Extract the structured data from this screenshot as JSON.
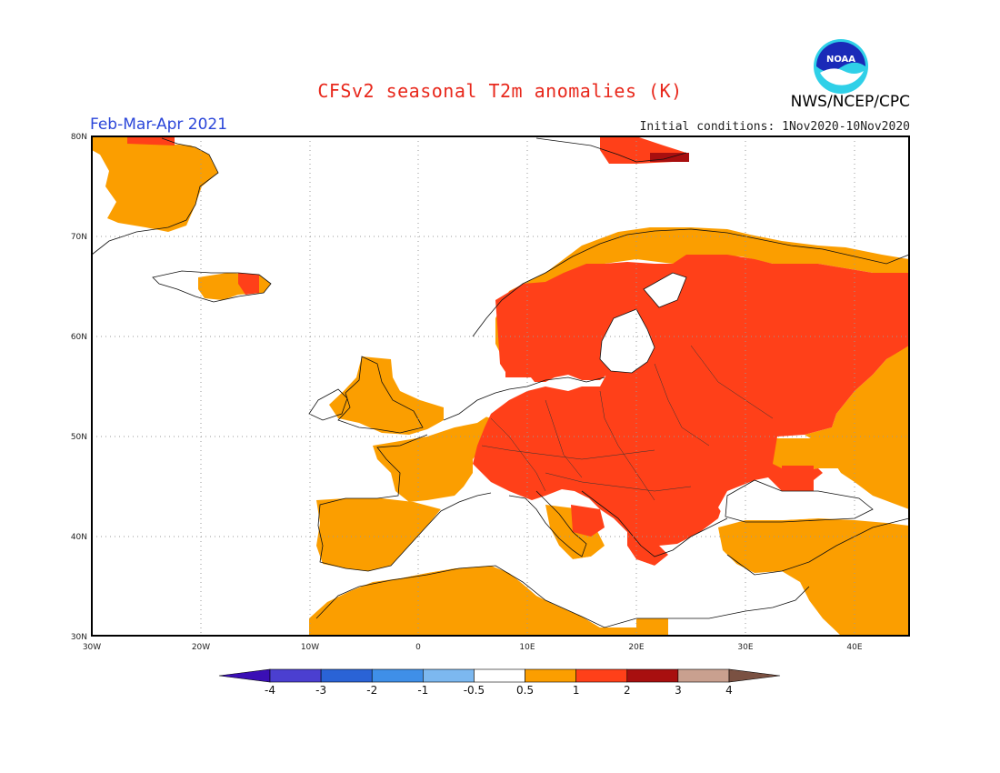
{
  "header": {
    "title": "CFSv2 seasonal T2m anomalies (K)",
    "period": "Feb-Mar-Apr 2021",
    "initial_conditions": "Initial conditions: 1Nov2020-10Nov2020",
    "agency": "NWS/NCEP/CPC",
    "logo_text": "NOAA"
  },
  "map": {
    "lon_range": [
      -30,
      45
    ],
    "lat_range": [
      30,
      80
    ],
    "lat_labels": [
      "30N",
      "40N",
      "50N",
      "60N",
      "70N",
      "80N"
    ],
    "lon_labels": [
      "30W",
      "20W",
      "10W",
      "0",
      "10E",
      "20E",
      "30E",
      "40E"
    ],
    "grid": true
  },
  "colorbar": {
    "labels": [
      "-4",
      "-3",
      "-2",
      "-1",
      "-0.5",
      "0.5",
      "1",
      "2",
      "3",
      "4"
    ],
    "colors": [
      "#3a0fb5",
      "#4b3fd0",
      "#2a63d6",
      "#3f8fe8",
      "#7cb8f0",
      "#ffffff",
      "#fb9e00",
      "#ff4019",
      "#a80f0f",
      "#c9a08f",
      "#7a5142"
    ]
  },
  "chart_data": {
    "type": "heatmap",
    "title": "CFSv2 seasonal T2m anomalies (K)",
    "subtitle": "Feb-Mar-Apr 2021",
    "xlim": [
      -30,
      45
    ],
    "ylim": [
      30,
      80
    ],
    "levels": [
      -4,
      -3,
      -2,
      -1,
      -0.5,
      0.5,
      1,
      2,
      3,
      4
    ],
    "regions": [
      {
        "name": "Greenland",
        "class": "0.5-1"
      },
      {
        "name": "Iceland",
        "class": "0.5-1"
      },
      {
        "name": "Svalbard",
        "class": "1-2"
      },
      {
        "name": "Scandinavia & Finland",
        "class": "1-2"
      },
      {
        "name": "Central & Eastern Europe",
        "class": "1-2"
      },
      {
        "name": "European Russia",
        "class": "1-2"
      },
      {
        "name": "Western Europe",
        "class": "0.5-1"
      },
      {
        "name": "Iberia",
        "class": "0.5-1"
      },
      {
        "name": "North Africa",
        "class": "0.5-1"
      },
      {
        "name": "Turkey & Middle East",
        "class": "0.5-1"
      },
      {
        "name": "Mediterranean Sea",
        "class": "-0.5-0.5"
      },
      {
        "name": "Atlantic Ocean",
        "class": "-0.5-0.5"
      }
    ]
  }
}
